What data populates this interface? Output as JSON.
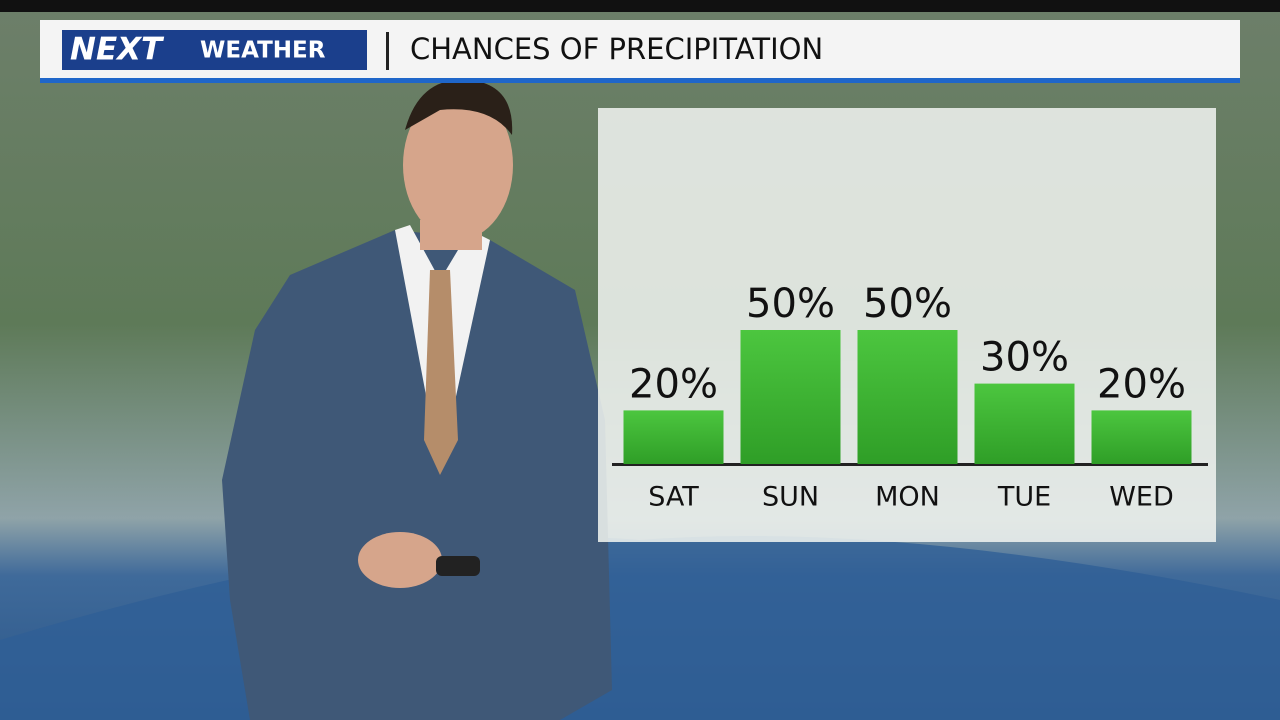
{
  "header": {
    "logo": "NEXT",
    "brand": "WEATHER"
  },
  "chart_data": {
    "type": "bar",
    "title": "CHANCES OF PRECIPITATION",
    "categories": [
      "SAT",
      "SUN",
      "MON",
      "TUE",
      "WED"
    ],
    "values": [
      20,
      50,
      50,
      30,
      20
    ],
    "value_labels": [
      "20%",
      "50%",
      "50%",
      "30%",
      "20%"
    ],
    "color": "#3cb531"
  }
}
